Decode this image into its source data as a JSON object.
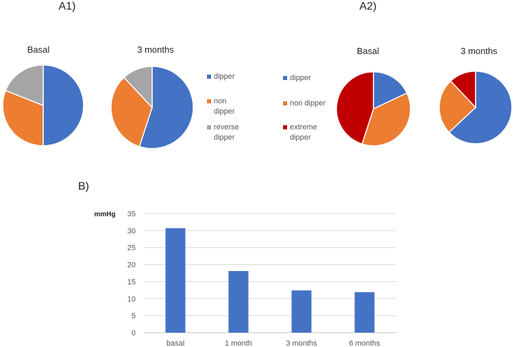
{
  "panel_labels": {
    "a1": "A1)",
    "a2": "A2)",
    "b": "B)"
  },
  "chart_data": [
    {
      "type": "pie",
      "panel": "A1",
      "title": "Basal",
      "labels": [
        "dipper",
        "non dipper",
        "reverse dipper"
      ],
      "values": [
        50,
        31,
        19
      ],
      "colors": [
        "#4472C4",
        "#ED7D31",
        "#A5A5A5"
      ]
    },
    {
      "type": "pie",
      "panel": "A1",
      "title": "3 months",
      "labels": [
        "dipper",
        "non dipper",
        "reverse dipper"
      ],
      "values": [
        55,
        33,
        12
      ],
      "colors": [
        "#4472C4",
        "#ED7D31",
        "#A5A5A5"
      ]
    },
    {
      "type": "pie",
      "panel": "A2",
      "title": "Basal",
      "labels": [
        "dipper",
        "non dipper",
        "extreme dipper"
      ],
      "values": [
        18,
        37,
        45
      ],
      "colors": [
        "#4472C4",
        "#ED7D31",
        "#C00000"
      ]
    },
    {
      "type": "pie",
      "panel": "A2",
      "title": "3 months",
      "labels": [
        "dipper",
        "non dipper",
        "extreme dipper"
      ],
      "values": [
        63,
        25,
        12
      ],
      "colors": [
        "#4472C4",
        "#ED7D31",
        "#C00000"
      ]
    },
    {
      "type": "bar",
      "panel": "B",
      "title": "",
      "ylabel": "mmHg",
      "categories": [
        "basal",
        "1  month",
        "3 months",
        "6 months"
      ],
      "values": [
        30.7,
        18.1,
        12.4,
        11.9
      ],
      "ylim": [
        0,
        35
      ],
      "yticks": [
        0,
        5,
        10,
        15,
        20,
        25,
        30,
        35
      ],
      "grid": true,
      "color": "#4472C4"
    }
  ],
  "legends": {
    "a1": {
      "items": [
        {
          "lines": [
            "dipper"
          ],
          "color": "#4472C4"
        },
        {
          "lines": [
            "non",
            "dipper"
          ],
          "color": "#ED7D31"
        },
        {
          "lines": [
            "reverse",
            "dipper"
          ],
          "color": "#A5A5A5"
        }
      ]
    },
    "a2": {
      "items": [
        {
          "lines": [
            "dipper"
          ],
          "color": "#4472C4"
        },
        {
          "lines": [
            "non dipper"
          ],
          "color": "#ED7D31"
        },
        {
          "lines": [
            "extreme",
            "dipper"
          ],
          "color": "#C00000"
        }
      ]
    }
  }
}
